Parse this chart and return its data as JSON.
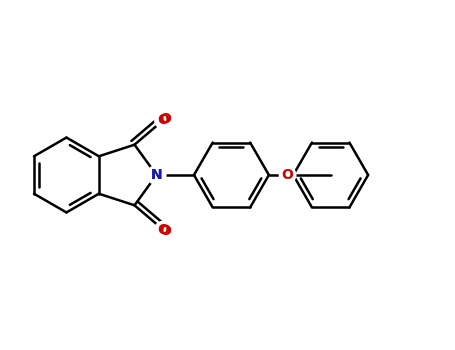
{
  "background_color": "#ffffff",
  "bond_color": "#000000",
  "nitrogen_color": "#1a1aaa",
  "oxygen_color": "#cc0000",
  "bond_width": 1.8,
  "figsize": [
    4.55,
    3.5
  ],
  "dpi": 100,
  "xlim": [
    -3.5,
    8.5
  ],
  "ylim": [
    -3.2,
    3.2
  ],
  "mol_scale": 1.0
}
